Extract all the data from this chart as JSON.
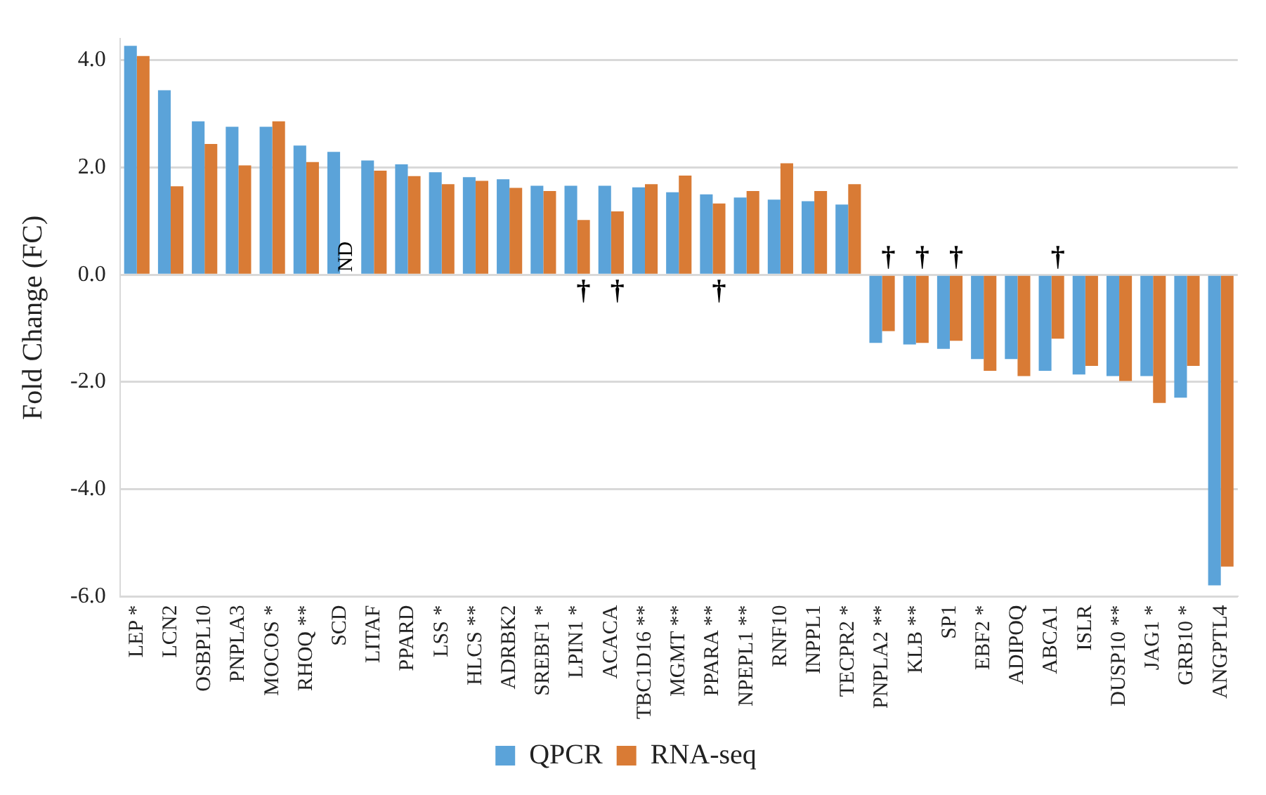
{
  "chart_data": {
    "type": "bar",
    "ylabel": "Fold Change (FC)",
    "categories": [
      "LEP *",
      "LCN2",
      "OSBPL10",
      "PNPLA3",
      "MOCOS *",
      "RHOQ **",
      "SCD",
      "LITAF",
      "PPARD",
      "LSS *",
      "HLCS **",
      "ADRBK2",
      "SREBF1 *",
      "LPIN1 *",
      "ACACA",
      "TBC1D16 **",
      "MGMT **",
      "PPARA **",
      "NPEPL1 **",
      "RNF10",
      "INPPL1",
      "TECPR2 *",
      "PNPLA2 **",
      "KLB **",
      "SP1",
      "EBF2 *",
      "ADIPOQ",
      "ABCA1",
      "ISLR",
      "DUSP10 **",
      "JAG1 *",
      "GRB10 *",
      "ANGPTL4"
    ],
    "series": [
      {
        "name": "QPCR",
        "color": "#5ba3d9",
        "values": [
          4.27,
          3.44,
          2.86,
          2.76,
          2.76,
          2.41,
          2.29,
          2.13,
          2.06,
          1.91,
          1.82,
          1.78,
          1.66,
          1.66,
          1.66,
          1.63,
          1.54,
          1.5,
          1.44,
          1.4,
          1.37,
          1.31,
          -1.27,
          -1.3,
          -1.38,
          -1.57,
          -1.57,
          -1.79,
          -1.86,
          -1.89,
          -1.89,
          -2.29,
          -5.79
        ]
      },
      {
        "name": "RNA-seq",
        "color": "#d97b35",
        "values": [
          4.08,
          1.65,
          2.44,
          2.04,
          2.86,
          2.1,
          null,
          1.94,
          1.84,
          1.69,
          1.75,
          1.62,
          1.56,
          1.02,
          1.18,
          1.69,
          1.85,
          1.33,
          1.56,
          2.08,
          1.56,
          1.69,
          -1.05,
          -1.27,
          -1.23,
          -1.79,
          -1.89,
          -1.19,
          -1.7,
          -1.98,
          -2.39,
          -1.7,
          -5.44
        ]
      }
    ],
    "ylim": [
      -6,
      4.4
    ],
    "yticks": [
      {
        "value": -6,
        "label": "-6.0"
      },
      {
        "value": -4,
        "label": "-4.0"
      },
      {
        "value": -2,
        "label": "-2.0"
      },
      {
        "value": 0,
        "label": "0.0"
      },
      {
        "value": 2,
        "label": "2.0"
      },
      {
        "value": 4,
        "label": "4.0"
      }
    ],
    "grid": "y",
    "legend": "bottom",
    "annotations": [
      {
        "text": "ND",
        "x": "SCD",
        "y": 0
      },
      {
        "text": "†",
        "x": "LPIN1 *",
        "y": 0
      },
      {
        "text": "†",
        "x": "ACACA",
        "y": 0
      },
      {
        "text": "†",
        "x": "PPARA **",
        "y": 0
      },
      {
        "text": "†",
        "x": "PNPLA2 **",
        "y": 0
      },
      {
        "text": "†",
        "x": "KLB **",
        "y": 0
      },
      {
        "text": "†",
        "x": "SP1",
        "y": 0
      },
      {
        "text": "†",
        "x": "ABCA1",
        "y": 0
      }
    ]
  }
}
